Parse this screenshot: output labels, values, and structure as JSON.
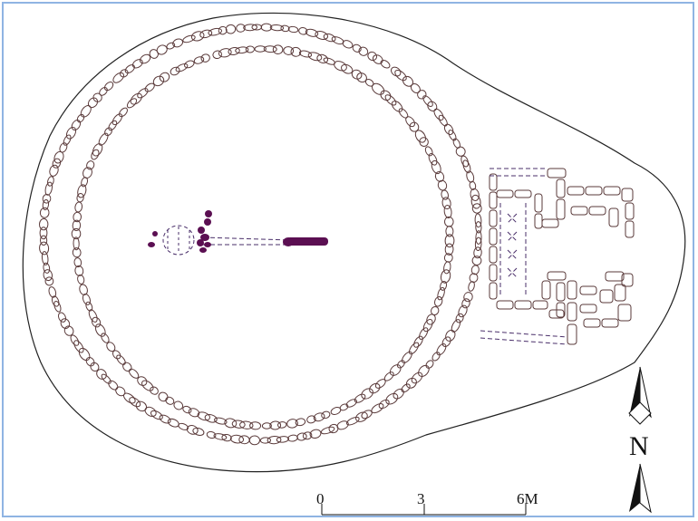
{
  "figure": {
    "scale_bar": {
      "ticks": [
        "0",
        "3",
        "6M"
      ]
    },
    "north_arrow": {
      "label": "N"
    },
    "colors": {
      "outline": "#222222",
      "stones": "#5a3a3a",
      "burial_marks": "#5b0f52",
      "dashed": "#4a2f6a",
      "frame": "#8fb4e3"
    }
  }
}
